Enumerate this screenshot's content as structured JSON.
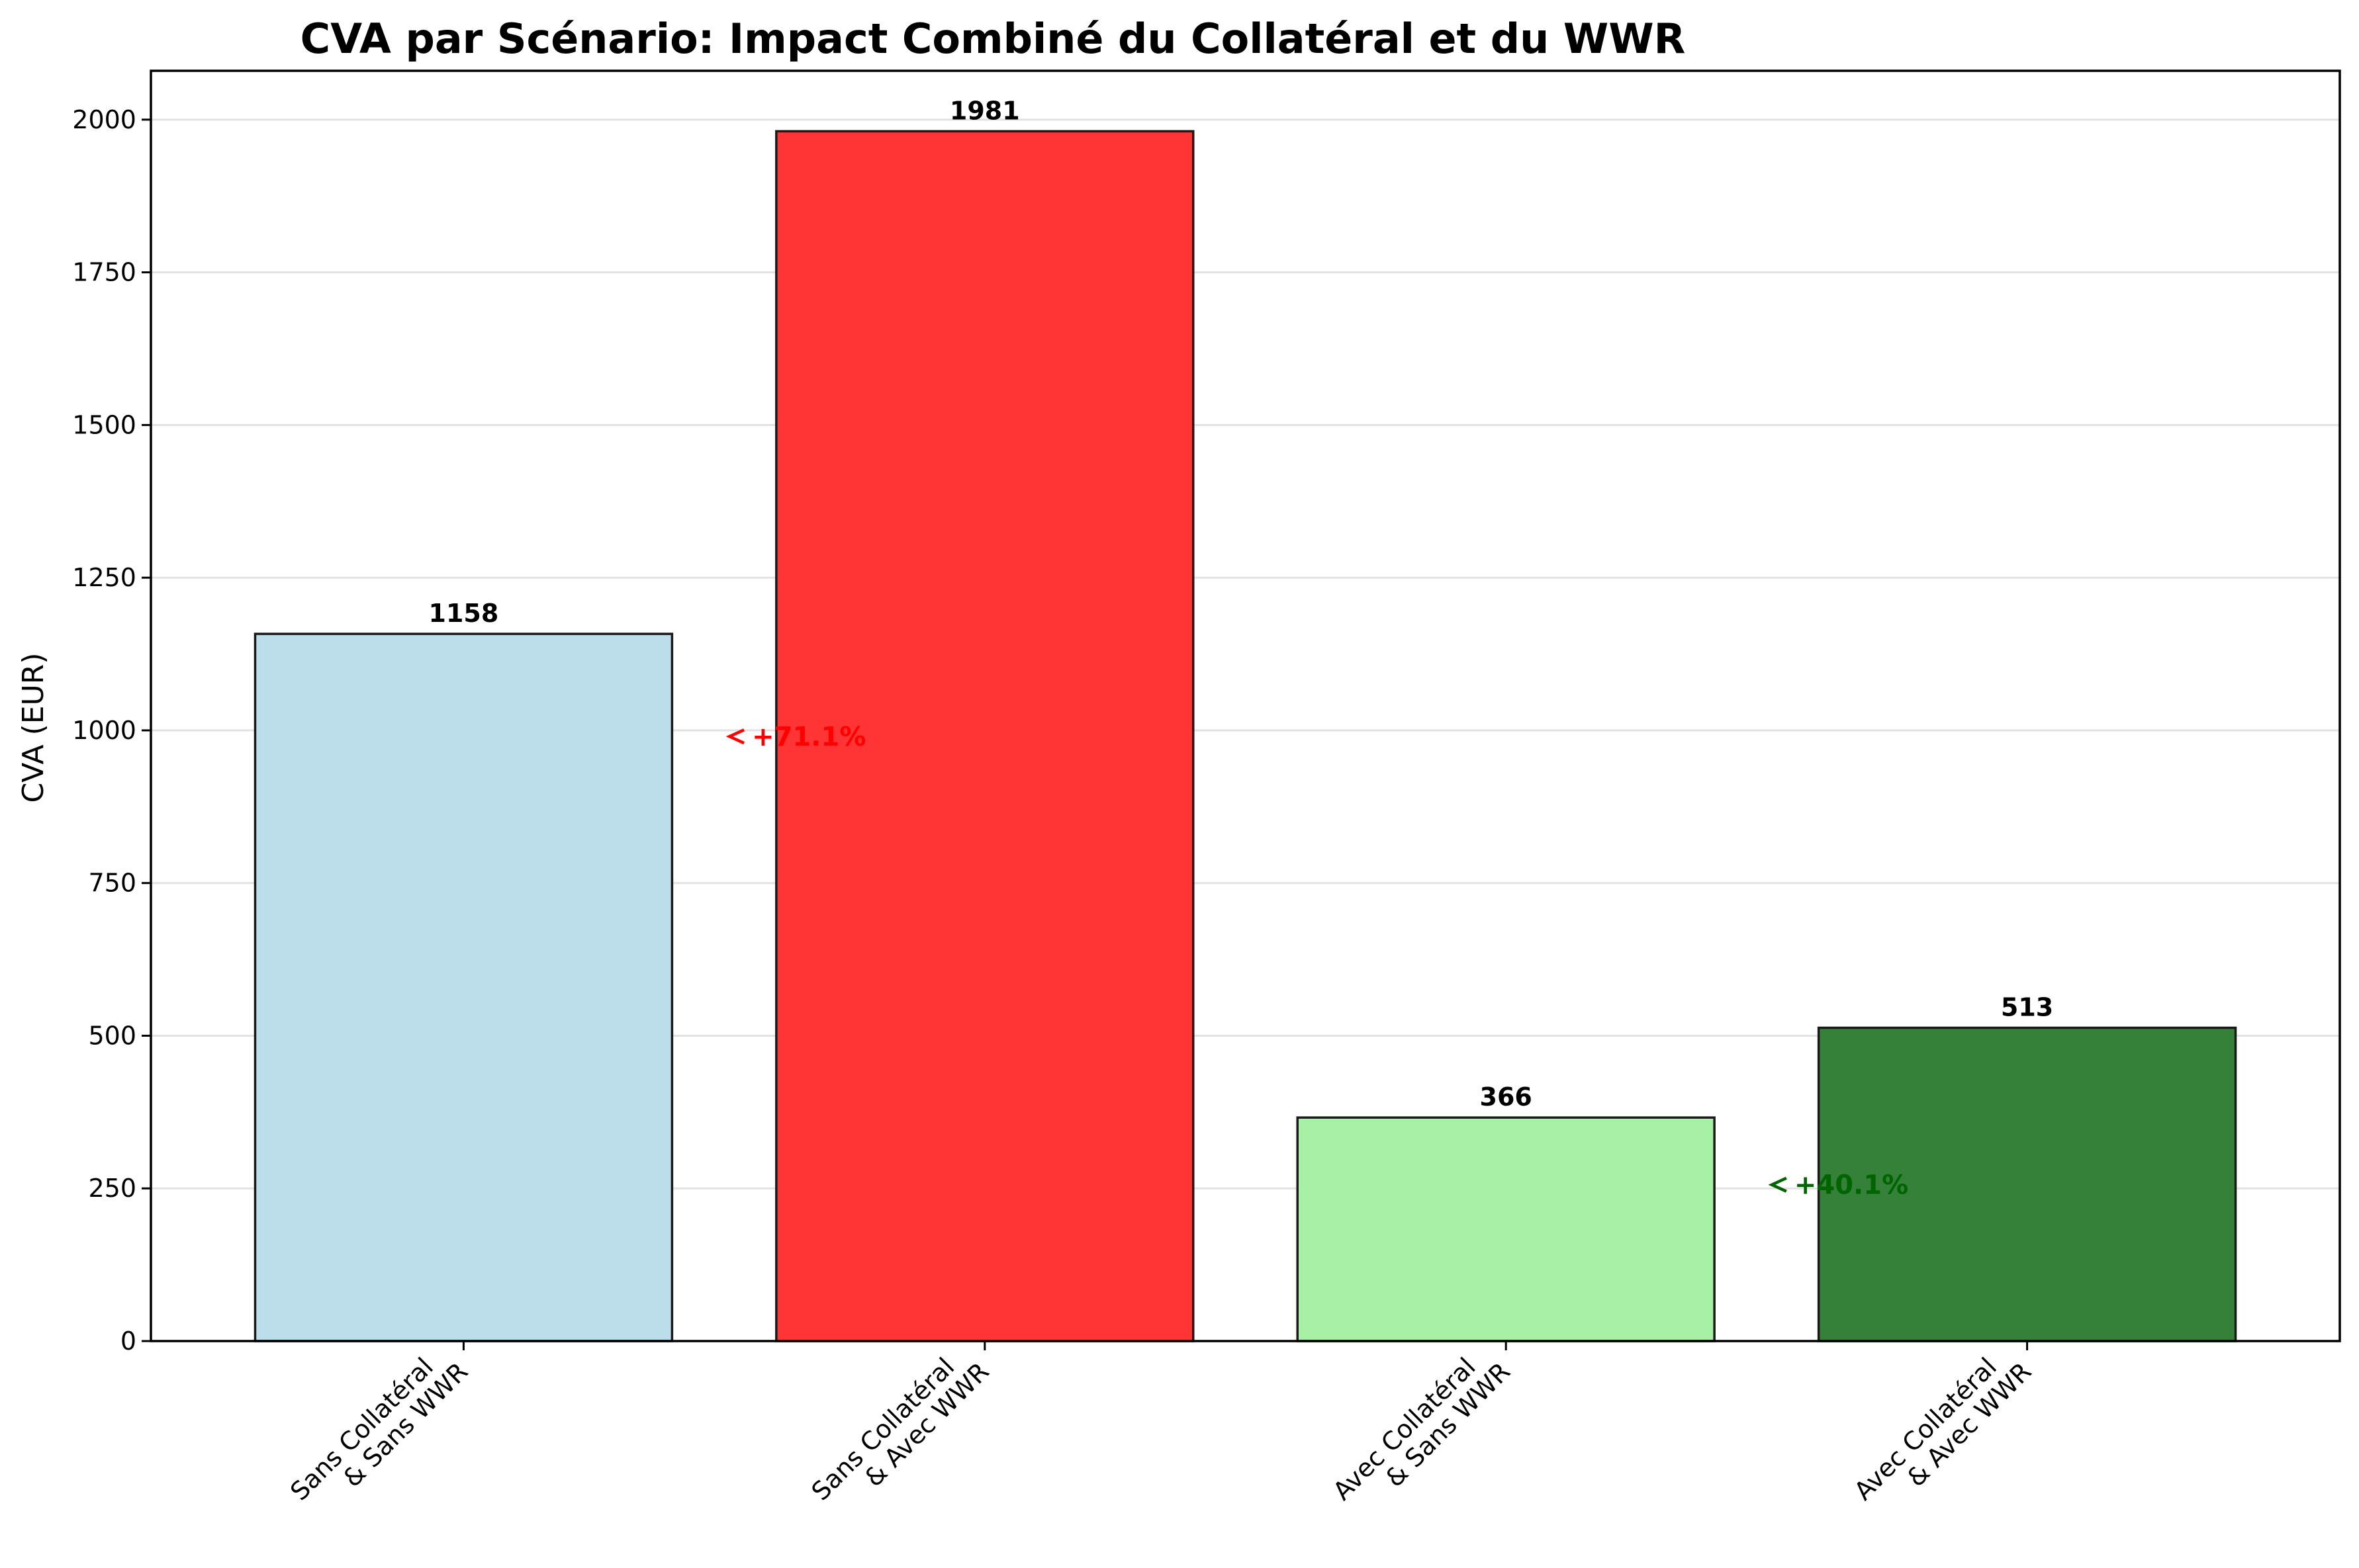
{
  "chart_data": {
    "type": "bar",
    "title": "CVA par Scénario: Impact Combiné du Collatéral et du WWR",
    "xlabel": "",
    "ylabel": "CVA (EUR)",
    "ylim": [
      0,
      2080
    ],
    "yticks": [
      0,
      250,
      500,
      750,
      1000,
      1250,
      1500,
      1750,
      2000
    ],
    "grid": "y",
    "categories": [
      [
        "Sans Collatéral",
        "& Sans WWR"
      ],
      [
        "Sans Collatéral",
        "& Avec WWR"
      ],
      [
        "Avec Collatéral",
        "& Sans WWR"
      ],
      [
        "Avec Collatéral",
        "& Avec WWR"
      ]
    ],
    "values": [
      1158,
      1981,
      366,
      513
    ],
    "value_labels": [
      "1158",
      "1981",
      "366",
      "513"
    ],
    "colors": [
      "#bcdeea",
      "#ff3434",
      "#a8f0a5",
      "#35813a"
    ],
    "edge_color": "#1a1a1a",
    "annotations": [
      {
        "text": "+71.1%",
        "x": 0.5,
        "y": 990,
        "color": "#ff0000"
      },
      {
        "text": "+40.1%",
        "x": 2.5,
        "y": 256,
        "color": "#006400"
      }
    ]
  }
}
